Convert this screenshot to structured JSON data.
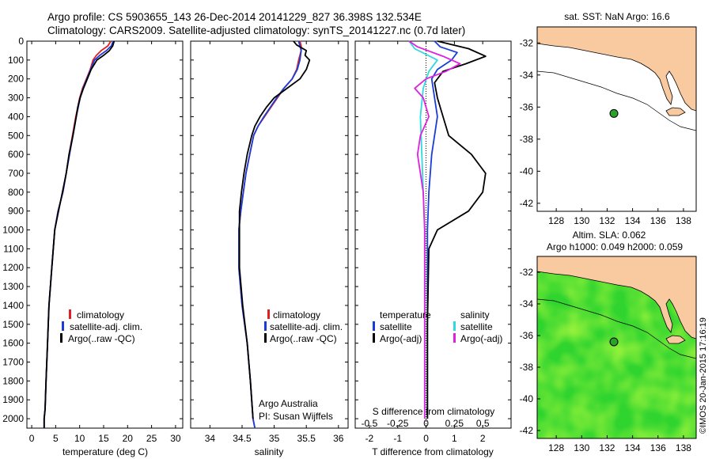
{
  "header": {
    "line1": "Argo profile: CS 5903655_143 26-Dec-2014 20141229_827 36.398S 132.534E",
    "line2": "Climatology: CARS2009. Satellite-adjusted climatology: synTS_20141227.nc (0.7d later)"
  },
  "credit": {
    "watermark": "©IMOS 20-Jan-2015 17:16:19",
    "institution": "Argo Australia",
    "pi": "PI: Susan Wijffels"
  },
  "colors": {
    "climatology": "#e02020",
    "satellite": "#1a3cd8",
    "argo": "#000000",
    "sal_satellite": "#30d8e0",
    "sal_argo": "#e020e0",
    "land": "#f9c9a0",
    "float_marker": "#2ca02c"
  },
  "chart_data": [
    {
      "type": "line",
      "id": "temperature",
      "xlabel": "temperature (deg C)",
      "ylabel": "",
      "xlim": [
        -1,
        31.5
      ],
      "ylim": [
        2050,
        0
      ],
      "xticks": [
        0,
        5,
        10,
        15,
        20,
        25,
        30
      ],
      "yticks": [
        0,
        100,
        200,
        300,
        400,
        500,
        600,
        700,
        800,
        900,
        1000,
        1100,
        1200,
        1300,
        1400,
        1500,
        1600,
        1700,
        1800,
        1900,
        2000
      ],
      "legend": [
        "climatology",
        "satellite-adj. clim.",
        "Argo(..raw -QC)"
      ],
      "series": [
        {
          "name": "climatology",
          "color": "#e02020",
          "x": [
            16.5,
            15.9,
            14.5,
            13.5,
            12.8,
            12.2,
            11.4,
            10.6,
            10.0,
            9.6,
            9.2,
            8.5,
            7.8,
            7.2,
            6.5,
            5.5,
            4.8,
            4.2,
            3.6,
            3.3,
            3.0,
            2.8,
            2.6,
            2.6
          ],
          "y": [
            0,
            25,
            50,
            75,
            100,
            150,
            200,
            250,
            300,
            350,
            400,
            500,
            600,
            700,
            800,
            900,
            1000,
            1200,
            1400,
            1600,
            1800,
            1950,
            2000,
            2050
          ]
        },
        {
          "name": "satellite-adj. clim.",
          "color": "#1a3cd8",
          "x": [
            17.0,
            16.6,
            15.6,
            14.2,
            13.1,
            12.3,
            11.5,
            10.7,
            10.1,
            9.7,
            9.3,
            8.6,
            7.9,
            7.2,
            6.5,
            5.5,
            4.8,
            4.2,
            3.6,
            3.3,
            3.0,
            2.8,
            2.6,
            2.6
          ],
          "y": [
            0,
            25,
            50,
            75,
            100,
            150,
            200,
            250,
            300,
            350,
            400,
            500,
            600,
            700,
            800,
            900,
            1000,
            1200,
            1400,
            1600,
            1800,
            1950,
            2000,
            2050
          ]
        },
        {
          "name": "Argo(..raw -QC)",
          "color": "#000000",
          "x": [
            17.2,
            16.9,
            16.2,
            15.0,
            13.6,
            12.4,
            11.6,
            10.8,
            10.1,
            9.6,
            9.3,
            8.6,
            7.8,
            7.2,
            6.4,
            5.6,
            4.8,
            4.2,
            3.6,
            3.3,
            3.0,
            2.8,
            2.6,
            2.6
          ],
          "y": [
            0,
            25,
            50,
            75,
            100,
            150,
            200,
            250,
            300,
            350,
            400,
            500,
            600,
            700,
            800,
            900,
            1000,
            1200,
            1400,
            1600,
            1800,
            1950,
            2000,
            2050
          ]
        }
      ]
    },
    {
      "type": "line",
      "id": "salinity",
      "xlabel": "salinity",
      "ylabel": "",
      "xlim": [
        33.7,
        36.15
      ],
      "ylim": [
        2050,
        0
      ],
      "xticks": [
        34,
        34.5,
        35,
        35.5,
        36
      ],
      "legend": [
        "climatology",
        "satellite-adj. clim.",
        "Argo(..raw -QC)"
      ],
      "series": [
        {
          "name": "climatology",
          "color": "#e02020",
          "x": [
            35.4,
            35.42,
            35.42,
            35.38,
            35.35,
            35.28,
            35.15,
            35.05,
            34.95,
            34.85,
            34.75,
            34.68,
            34.62,
            34.56,
            34.52,
            34.48,
            34.45,
            34.45,
            34.5,
            34.58,
            34.63,
            34.67,
            34.7
          ],
          "y": [
            0,
            25,
            50,
            100,
            150,
            200,
            250,
            300,
            350,
            400,
            450,
            500,
            600,
            700,
            800,
            900,
            1000,
            1200,
            1400,
            1600,
            1800,
            2000,
            2050
          ]
        },
        {
          "name": "satellite-adj. clim.",
          "color": "#1a3cd8",
          "x": [
            35.38,
            35.4,
            35.42,
            35.4,
            35.36,
            35.28,
            35.15,
            35.04,
            34.94,
            34.84,
            34.75,
            34.68,
            34.62,
            34.56,
            34.52,
            34.48,
            34.45,
            34.45,
            34.5,
            34.58,
            34.63,
            34.67,
            34.7
          ],
          "y": [
            0,
            25,
            50,
            100,
            150,
            200,
            250,
            300,
            350,
            400,
            450,
            500,
            600,
            700,
            800,
            900,
            1000,
            1200,
            1400,
            1600,
            1800,
            2000,
            2050
          ]
        },
        {
          "name": "Argo(..raw -QC)",
          "color": "#000000",
          "x": [
            35.3,
            35.35,
            35.5,
            35.48,
            35.55,
            35.5,
            35.4,
            35.2,
            35.0,
            34.88,
            34.78,
            34.7,
            34.65,
            34.58,
            34.53,
            34.49,
            34.46,
            34.46,
            34.51,
            34.58,
            34.63,
            34.67
          ],
          "y": [
            0,
            20,
            50,
            75,
            100,
            150,
            200,
            250,
            300,
            350,
            400,
            450,
            500,
            600,
            700,
            800,
            900,
            1200,
            1400,
            1600,
            1800,
            2000
          ]
        }
      ]
    },
    {
      "type": "line",
      "id": "difference",
      "xlabel_top": "S difference from climatology",
      "xlabel": "T difference from climatology",
      "xlim": [
        -2.5,
        3
      ],
      "ylim": [
        2050,
        0
      ],
      "xticks": [
        -2,
        -1,
        0,
        1,
        2
      ],
      "xticks_s_labels": [
        "-0.5",
        "-0.25",
        "0",
        "0.25",
        "0.5"
      ],
      "legend_temperature_title": "temperature",
      "legend_salinity_title": "salinity",
      "legend": [
        "satellite",
        "Argo(-adj)",
        "satellite",
        "Argo(-adj)"
      ],
      "series": [
        {
          "name": "T satellite",
          "color": "#1a3cd8",
          "x": [
            0.3,
            0.5,
            1.1,
            0.9,
            0.4,
            0.2,
            0.3,
            0.4,
            0.3,
            0.2,
            0.1,
            0.05,
            0.05,
            0.05
          ],
          "y": [
            0,
            30,
            60,
            100,
            150,
            200,
            300,
            400,
            500,
            600,
            800,
            1000,
            1500,
            2000
          ]
        },
        {
          "name": "T Argo(-adj)",
          "color": "#000000",
          "x": [
            0.4,
            1.5,
            2.1,
            1.4,
            0.6,
            0.3,
            0.4,
            0.6,
            0.8,
            1.6,
            2.1,
            2.0,
            1.5,
            0.4,
            0.1,
            0.05,
            0.05
          ],
          "y": [
            0,
            40,
            80,
            120,
            160,
            220,
            300,
            400,
            500,
            600,
            700,
            800,
            900,
            1000,
            1100,
            1500,
            2000
          ]
        },
        {
          "name": "S satellite",
          "color": "#30d8e0",
          "x": [
            -0.6,
            -0.4,
            0.4,
            0.1,
            -0.1,
            -0.2,
            -0.15,
            -0.1,
            -0.05,
            -0.05,
            -0.05
          ],
          "y": [
            0,
            40,
            100,
            160,
            250,
            400,
            600,
            800,
            1000,
            1500,
            2000
          ]
        },
        {
          "name": "S Argo(-adj)",
          "color": "#e020e0",
          "x": [
            -0.6,
            -0.3,
            0.6,
            1.2,
            0.7,
            0.0,
            -0.4,
            -0.1,
            0.1,
            -0.2,
            -0.3,
            -0.1,
            -0.05,
            -0.05
          ],
          "y": [
            0,
            30,
            80,
            120,
            160,
            200,
            250,
            300,
            400,
            500,
            600,
            800,
            1000,
            2000
          ]
        }
      ]
    },
    {
      "type": "map",
      "id": "sst-map",
      "title": "sat. SST: NaN Argo: 16.6",
      "xlim": [
        126.5,
        139
      ],
      "ylim": [
        -42.5,
        -31
      ],
      "xticks": [
        128,
        130,
        132,
        134,
        136,
        138
      ],
      "yticks": [
        -32,
        -34,
        -36,
        -38,
        -40,
        -42
      ],
      "float_position": {
        "lon": 132.534,
        "lat": -36.398
      }
    },
    {
      "type": "map",
      "id": "sla-map",
      "title": "Altim. SLA: 0.062",
      "subtitle": "Argo h1000: 0.049 h2000: 0.059",
      "xlim": [
        126.5,
        139
      ],
      "ylim": [
        -42.5,
        -31
      ],
      "xticks": [
        128,
        130,
        132,
        134,
        136,
        138
      ],
      "yticks": [
        -32,
        -34,
        -36,
        -38,
        -40,
        -42
      ],
      "float_position": {
        "lon": 132.534,
        "lat": -36.398
      }
    }
  ]
}
